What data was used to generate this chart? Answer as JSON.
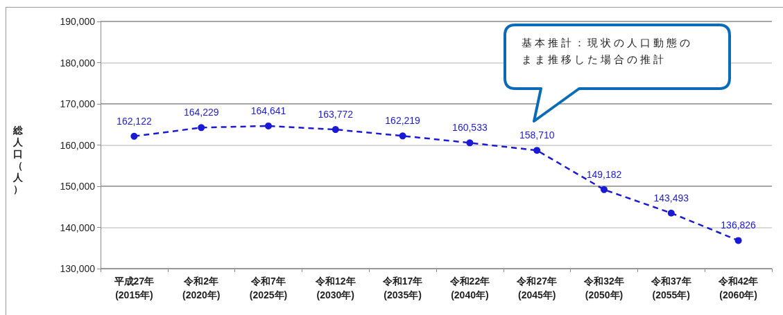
{
  "chart_data": {
    "type": "line",
    "ylabel": "総人口（人）",
    "categories": [
      "平成27年\n(2015年)",
      "令和2年\n(2020年)",
      "令和7年\n(2025年)",
      "令和12年\n(2030年)",
      "令和17年\n(2035年)",
      "令和22年\n(2040年)",
      "令和27年\n(2045年)",
      "令和32年\n(2050年)",
      "令和37年\n(2055年)",
      "令和42年\n(2060年)"
    ],
    "series": [
      {
        "color": "#1a1ad6",
        "values": [
          162122,
          164229,
          164641,
          163772,
          162219,
          160533,
          158710,
          149182,
          143493,
          136826
        ],
        "value_labels": [
          "162,122",
          "164,229",
          "164,641",
          "163,772",
          "162,219",
          "160,533",
          "158,710",
          "149,182",
          "143,493",
          "136,826"
        ]
      }
    ],
    "ylim": [
      130000,
      190000
    ],
    "yticks": [
      {
        "value": 130000,
        "label": "130,000"
      },
      {
        "value": 140000,
        "label": "140,000"
      },
      {
        "value": 150000,
        "label": "150,000"
      },
      {
        "value": 160000,
        "label": "160,000"
      },
      {
        "value": 170000,
        "label": "170,000"
      },
      {
        "value": 180000,
        "label": "180,000"
      },
      {
        "value": 190000,
        "label": "190,000"
      }
    ],
    "grid": "y",
    "marker": "circle",
    "line_style": "dashed",
    "annotations": [
      "基本推計：現状の人口動態のまま推移した場合の推計"
    ]
  }
}
